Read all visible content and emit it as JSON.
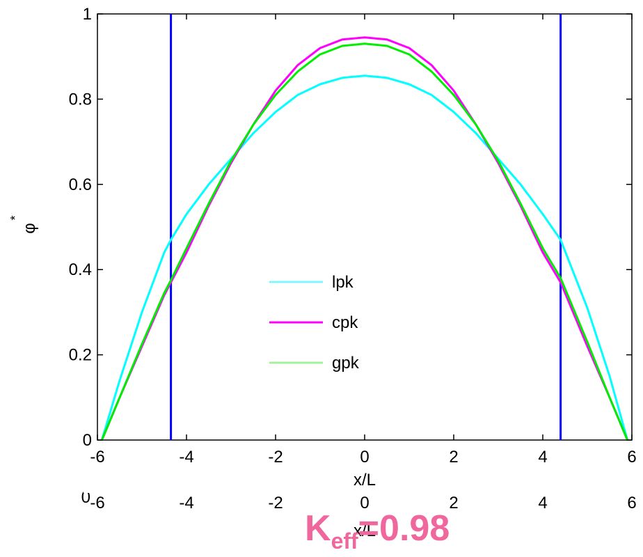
{
  "chart_data": {
    "type": "line",
    "xlabel": "x/L",
    "ylabel": "φ",
    "ylabel_superscript": "*",
    "xlim": [
      -6,
      6
    ],
    "ylim": [
      0,
      1
    ],
    "xticks": [
      "-6",
      "-4",
      "-2",
      "0",
      "2",
      "4",
      "6"
    ],
    "yticks": [
      "0",
      "0.2",
      "0.4",
      "0.6",
      "0.8",
      "1"
    ],
    "grid": false,
    "legend_position": "center-left",
    "vertical_lines": [
      {
        "x": -4.35,
        "color": "#0000ff"
      },
      {
        "x": 4.4,
        "color": "#0000ff"
      }
    ],
    "series": [
      {
        "name": "lpk",
        "color": "#00ffff",
        "x": [
          -5.9,
          -5.5,
          -5,
          -4.5,
          -4.35,
          -4,
          -3.5,
          -3,
          -2.5,
          -2,
          -1.5,
          -1,
          -0.5,
          0,
          0.5,
          1,
          1.5,
          2,
          2.5,
          3,
          3.5,
          4,
          4.4,
          5,
          5.5,
          5.9
        ],
        "y": [
          0,
          0.14,
          0.3,
          0.44,
          0.47,
          0.53,
          0.6,
          0.66,
          0.72,
          0.77,
          0.81,
          0.835,
          0.85,
          0.855,
          0.85,
          0.835,
          0.81,
          0.77,
          0.72,
          0.66,
          0.6,
          0.53,
          0.47,
          0.31,
          0.15,
          0
        ]
      },
      {
        "name": "cpk",
        "color": "#ff00ff",
        "x": [
          -5.9,
          -5.5,
          -5,
          -4.5,
          -4.35,
          -4,
          -3.5,
          -3,
          -2.5,
          -2,
          -1.5,
          -1,
          -0.5,
          0,
          0.5,
          1,
          1.5,
          2,
          2.5,
          3,
          3.5,
          4,
          4.4,
          5,
          5.5,
          5.9
        ],
        "y": [
          0,
          0.1,
          0.22,
          0.34,
          0.37,
          0.44,
          0.55,
          0.65,
          0.74,
          0.82,
          0.88,
          0.92,
          0.94,
          0.945,
          0.94,
          0.92,
          0.88,
          0.82,
          0.74,
          0.65,
          0.55,
          0.44,
          0.37,
          0.22,
          0.1,
          0
        ]
      },
      {
        "name": "gpk",
        "color": "#00ee00",
        "x": [
          -5.9,
          -5.5,
          -5,
          -4.5,
          -4.35,
          -4,
          -3.5,
          -3,
          -2.5,
          -2,
          -1.5,
          -1,
          -0.5,
          0,
          0.5,
          1,
          1.5,
          2,
          2.5,
          3,
          3.5,
          4,
          4.4,
          5,
          5.5,
          5.9
        ],
        "y": [
          0,
          0.1,
          0.225,
          0.345,
          0.375,
          0.45,
          0.555,
          0.655,
          0.74,
          0.81,
          0.865,
          0.905,
          0.925,
          0.93,
          0.925,
          0.905,
          0.865,
          0.81,
          0.74,
          0.655,
          0.555,
          0.45,
          0.38,
          0.23,
          0.1,
          0
        ]
      }
    ]
  },
  "legend_line_colors": [
    "#7ff7ff",
    "#ff00ff",
    "#a5f0a0"
  ],
  "underlay": {
    "xticks": [
      "-6",
      "-4",
      "-2",
      "0",
      "2",
      "4",
      "6"
    ],
    "xlabel": "x/L",
    "y_tick_fragment": "0"
  },
  "annotation": {
    "k_base": "K",
    "k_sub": "eff",
    "k_value": "=0.98",
    "color": "#f0679e"
  }
}
